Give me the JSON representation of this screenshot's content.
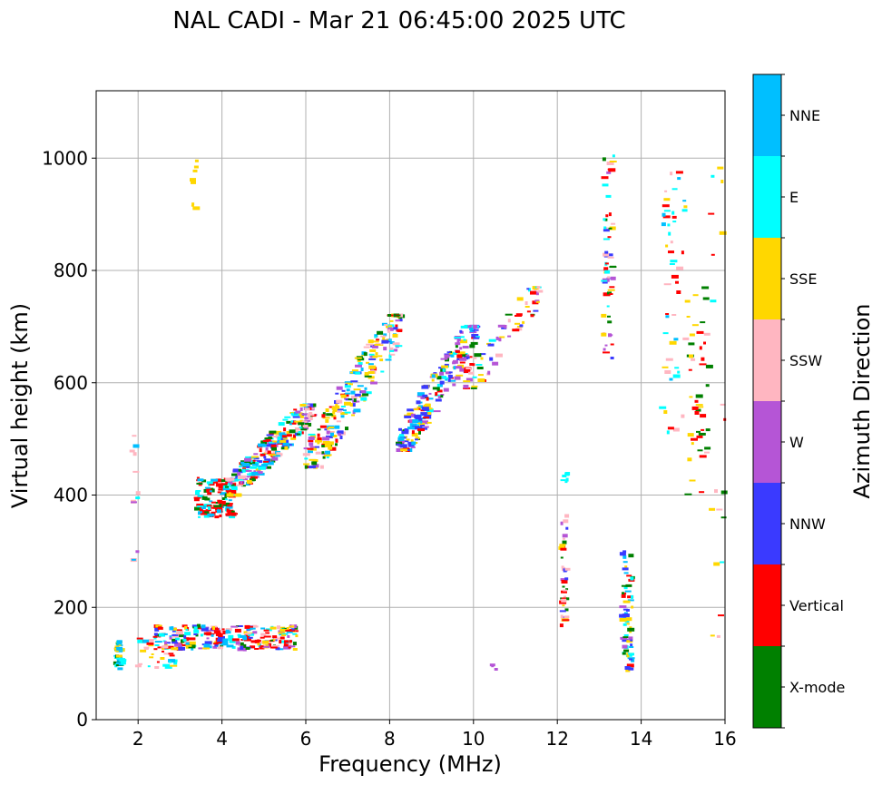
{
  "chart_data": {
    "type": "scatter",
    "title": "NAL CADI - Mar 21 06:45:00 2025 UTC",
    "xlabel": "Frequency (MHz)",
    "ylabel": "Virtual height (km)",
    "xlim": [
      1,
      16
    ],
    "ylim": [
      0,
      1120
    ],
    "xticks": [
      2,
      4,
      6,
      8,
      10,
      12,
      14,
      16
    ],
    "yticks": [
      0,
      200,
      400,
      600,
      800,
      1000
    ],
    "grid": true,
    "colorbar": {
      "label": "Azimuth Direction",
      "categories": [
        {
          "name": "X-mode",
          "color": "#008000"
        },
        {
          "name": "Vertical",
          "color": "#ff0000"
        },
        {
          "name": "NNW",
          "color": "#3a3aff"
        },
        {
          "name": "W",
          "color": "#b555d6"
        },
        {
          "name": "SSW",
          "color": "#ffb6c1"
        },
        {
          "name": "SSE",
          "color": "#ffd700"
        },
        {
          "name": "E",
          "color": "#00ffff"
        },
        {
          "name": "NNE",
          "color": "#00bfff"
        }
      ]
    },
    "clusters": [
      {
        "desc": "E-region low echoes",
        "x": [
          1.45,
          1.65
        ],
        "y": [
          90,
          140
        ],
        "n": 40,
        "cats": [
          6,
          5,
          7,
          0
        ]
      },
      {
        "desc": "E-region trace",
        "x": [
          2.0,
          3.0
        ],
        "y": [
          90,
          145
        ],
        "n": 40,
        "cats": [
          6,
          7,
          5,
          1,
          4
        ]
      },
      {
        "desc": "Es layer",
        "x": [
          2.4,
          5.8
        ],
        "y": [
          125,
          168
        ],
        "n": 260,
        "cats": [
          1,
          1,
          1,
          7,
          6,
          3,
          4,
          5,
          0,
          2
        ]
      },
      {
        "desc": "F1 trace start",
        "x": [
          3.4,
          4.3
        ],
        "y": [
          360,
          430
        ],
        "n": 120,
        "cats": [
          1,
          1,
          1,
          0,
          6,
          7
        ]
      },
      {
        "desc": "F trace lower",
        "x": [
          4.1,
          6.2
        ],
        "y": [
          400,
          560
        ],
        "n": 260,
        "cats": [
          1,
          3,
          2,
          5,
          6,
          7,
          0,
          4
        ]
      },
      {
        "desc": "F trace middle",
        "x": [
          6.0,
          8.3
        ],
        "y": [
          450,
          720
        ],
        "n": 240,
        "cats": [
          5,
          5,
          6,
          0,
          3,
          2,
          1,
          4,
          7
        ]
      },
      {
        "desc": "F trace upper",
        "x": [
          8.2,
          10.1
        ],
        "y": [
          480,
          700
        ],
        "n": 220,
        "cats": [
          2,
          2,
          3,
          3,
          5,
          6,
          1,
          0,
          7
        ]
      },
      {
        "desc": "F trace top",
        "x": [
          9.8,
          11.6
        ],
        "y": [
          590,
          770
        ],
        "n": 70,
        "cats": [
          1,
          2,
          3,
          4,
          6,
          0,
          5
        ]
      },
      {
        "desc": "column 12.2 MHz low",
        "x": [
          12.1,
          12.25
        ],
        "y": [
          165,
          365
        ],
        "n": 40,
        "cats": [
          5,
          3,
          2,
          1,
          4,
          0
        ]
      },
      {
        "desc": "column 12.2 MHz mid",
        "x": [
          12.1,
          12.25
        ],
        "y": [
          420,
          445
        ],
        "n": 6,
        "cats": [
          6
        ]
      },
      {
        "desc": "column 13.2 MHz",
        "x": [
          13.1,
          13.35
        ],
        "y": [
          640,
          1010
        ],
        "n": 60,
        "cats": [
          2,
          1,
          3,
          0,
          6,
          4,
          5
        ]
      },
      {
        "desc": "column 13.7 MHz",
        "x": [
          13.55,
          13.8
        ],
        "y": [
          85,
          300
        ],
        "n": 70,
        "cats": [
          5,
          6,
          0,
          2,
          3,
          1,
          7
        ]
      },
      {
        "desc": "scattered 14.5-15 MHz",
        "x": [
          14.5,
          15.1
        ],
        "y": [
          510,
          1000
        ],
        "n": 50,
        "cats": [
          5,
          4,
          6,
          1,
          7
        ]
      },
      {
        "desc": "scattered 15.1-15.6 MHz",
        "x": [
          15.1,
          15.6
        ],
        "y": [
          390,
          770
        ],
        "n": 45,
        "cats": [
          0,
          4,
          1,
          5,
          0
        ]
      },
      {
        "desc": "right edge echoes",
        "x": [
          15.6,
          16
        ],
        "y": [
          90,
          1000
        ],
        "n": 20,
        "cats": [
          6,
          5,
          0,
          4,
          1
        ]
      },
      {
        "desc": "isolated 1.9 MHz",
        "x": [
          1.85,
          2.0
        ],
        "y": [
          230,
          510
        ],
        "n": 12,
        "cats": [
          3,
          6,
          7,
          4
        ]
      },
      {
        "desc": "isolated 3.3 MHz",
        "x": [
          3.28,
          3.4
        ],
        "y": [
          905,
          1015
        ],
        "n": 8,
        "cats": [
          5
        ]
      },
      {
        "desc": "isolated 10.5 MHz",
        "x": [
          10.45,
          10.6
        ],
        "y": [
          88,
          98
        ],
        "n": 3,
        "cats": [
          3
        ]
      }
    ]
  }
}
